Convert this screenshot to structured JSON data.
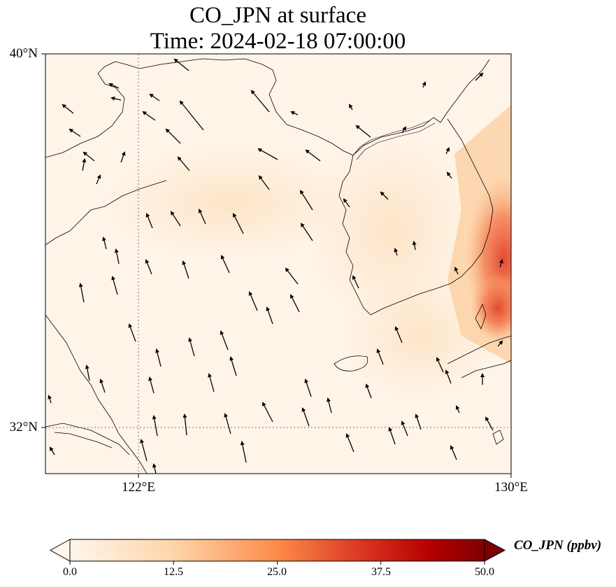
{
  "title": {
    "line1": "CO_JPN at surface",
    "line2": "Time: 2024-02-18 07:00:00"
  },
  "map": {
    "variable": "CO_JPN",
    "level": "surface",
    "lon_range": [
      120,
      130
    ],
    "lat_range": [
      31,
      40
    ],
    "lat_ticks": [
      {
        "value": 40,
        "label": "40°N"
      },
      {
        "value": 32,
        "label": "32°N"
      }
    ],
    "lon_ticks": [
      {
        "value": 122,
        "label": "122°E"
      },
      {
        "value": 130,
        "label": "130°E"
      }
    ],
    "gridlines": "dotted",
    "vectors": "wind arrows, mostly pointing north to north-northwest",
    "hotspot": "high concentration along the east coast of the Korean Peninsula near 129.5°E–130°E, 34.5°N–37.5°N"
  },
  "colorbar": {
    "label": "CO_JPN (ppbv)",
    "min": 0.0,
    "max": 50.0,
    "extend": "both",
    "ticks": [
      "0.0",
      "12.5",
      "25.0",
      "37.5",
      "50.0"
    ],
    "colors": [
      "#fff5eb",
      "#fdd5a9",
      "#fc8b4a",
      "#d7301f",
      "#b30000",
      "#7f0000"
    ]
  }
}
